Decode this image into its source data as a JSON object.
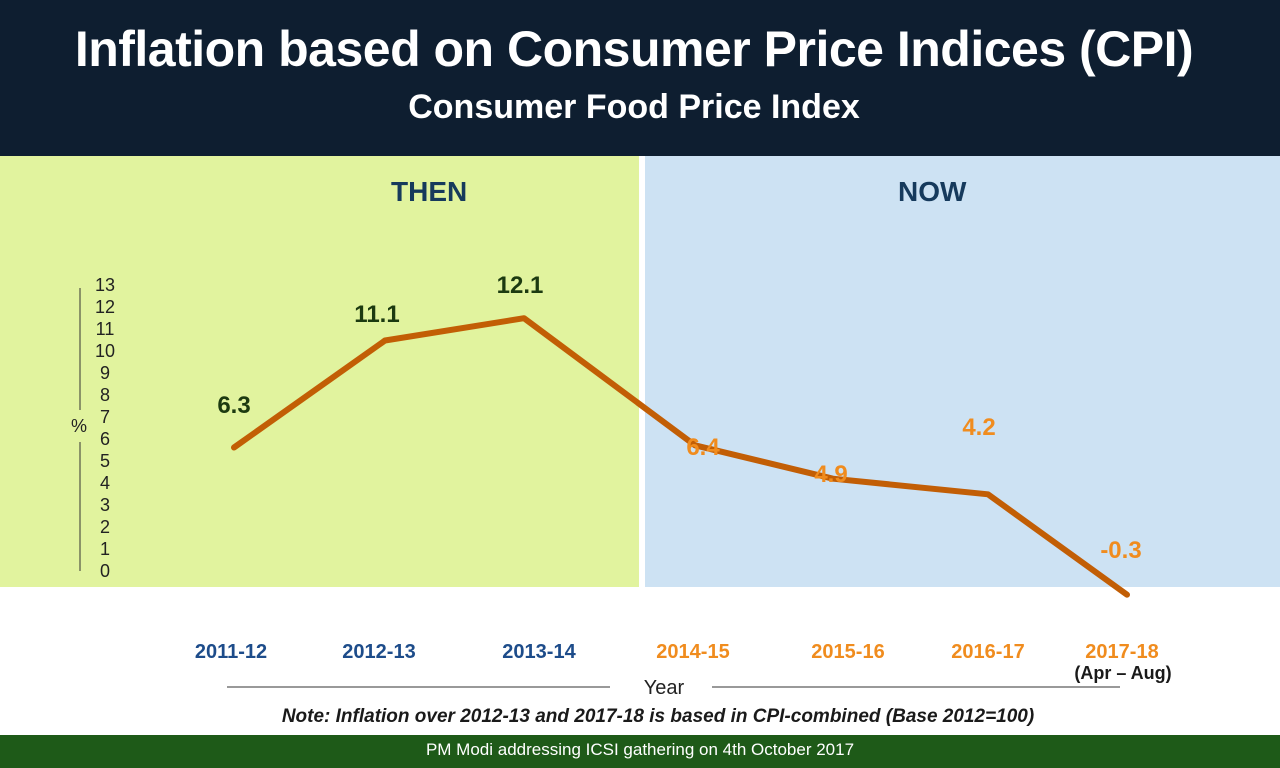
{
  "header": {
    "title": "Inflation based on Consumer Price Indices (CPI)",
    "subtitle": "Consumer Food Price Index"
  },
  "panels": {
    "then": "THEN",
    "now": "NOW"
  },
  "colors": {
    "line": "#c25e05",
    "then_text": "#1c3a10",
    "now_text": "#f08c1e",
    "then_year": "#1d4c8a",
    "now_year": "#f08c1e"
  },
  "chart_data": {
    "type": "line",
    "title": "Consumer Food Price Index",
    "xlabel": "Year",
    "ylabel": "%",
    "ylim": [
      0,
      13
    ],
    "yticks": [
      "0",
      "1",
      "2",
      "3",
      "4",
      "5",
      "6",
      "7",
      "8",
      "9",
      "10",
      "11",
      "12",
      "13"
    ],
    "categories": [
      "2011-12",
      "2012-13",
      "2013-14",
      "2014-15",
      "2015-16",
      "2016-17",
      "2017-18"
    ],
    "category_sublabels": [
      "",
      "",
      "",
      "",
      "",
      "",
      "(Apr – Aug)"
    ],
    "values": [
      6.3,
      11.1,
      12.1,
      6.4,
      4.9,
      4.2,
      -0.3
    ],
    "value_labels": [
      "6.3",
      "11.1",
      "12.1",
      "6.4",
      "4.9",
      "4.2",
      "-0.3"
    ],
    "period": [
      "then",
      "then",
      "then",
      "now",
      "now",
      "now",
      "now"
    ]
  },
  "note": "Note: Inflation over 2012-13 and 2017-18 is based in CPI-combined (Base 2012=100)",
  "footer": "PM Modi addressing ICSI gathering on 4th October 2017"
}
